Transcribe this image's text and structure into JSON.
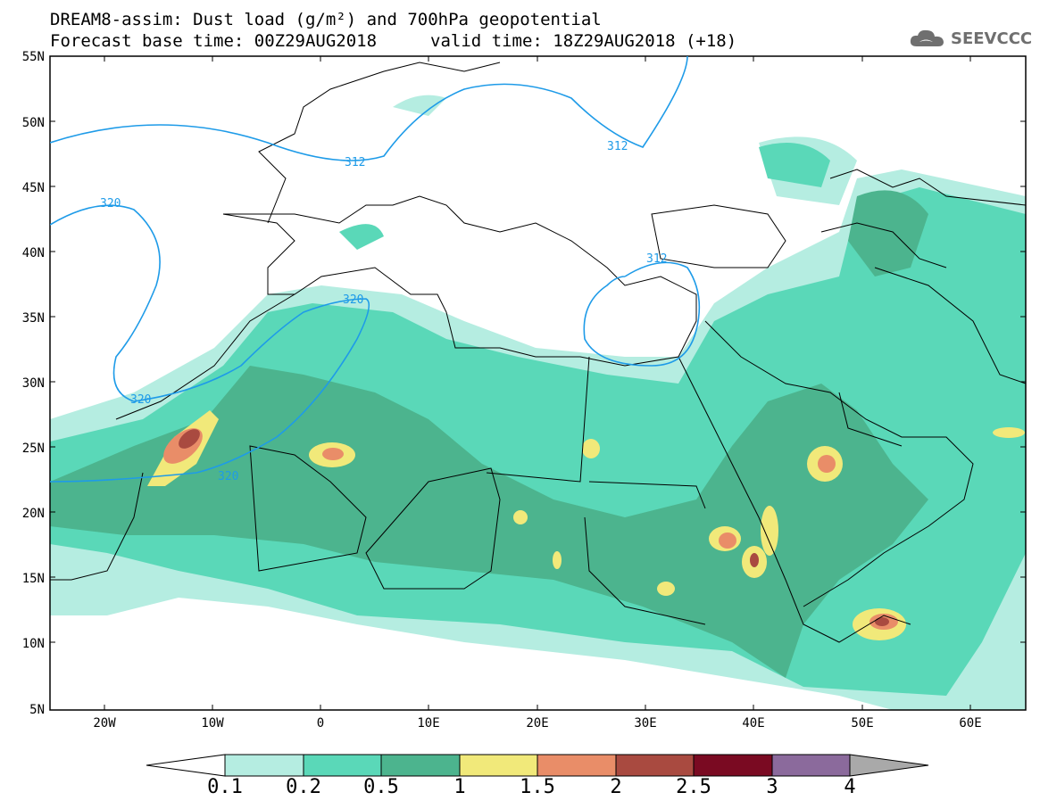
{
  "header": {
    "title": "DREAM8-assim: Dust load (g/m²) and 700hPa geopotential",
    "base_time": "Forecast base time: 00Z29AUG2018",
    "valid_time": "valid time: 18Z29AUG2018 (+18)"
  },
  "logo": {
    "text": "SEEVCCC",
    "icon": "cloud-icon"
  },
  "map": {
    "lat_labels": [
      "55N",
      "50N",
      "45N",
      "40N",
      "35N",
      "30N",
      "25N",
      "20N",
      "15N",
      "10N",
      "5N"
    ],
    "lon_labels": [
      "20W",
      "10W",
      "0",
      "10E",
      "20E",
      "30E",
      "40E",
      "50E",
      "60E"
    ],
    "contour_labels": [
      "312",
      "312",
      "312",
      "320",
      "320",
      "320",
      "320"
    ]
  },
  "colorbar": {
    "labels": [
      "0.1",
      "0.2",
      "0.5",
      "1",
      "1.5",
      "2",
      "2.5",
      "3",
      "4"
    ],
    "colors": [
      "#ffffff",
      "#b5ede1",
      "#5ad8b8",
      "#4cb48e",
      "#f1e97a",
      "#e98d68",
      "#a94a40",
      "#7a0a22",
      "#8b6a9c",
      "#a9a9a9"
    ]
  },
  "colors": {
    "contour": "#1e9be8",
    "border": "#000000"
  }
}
